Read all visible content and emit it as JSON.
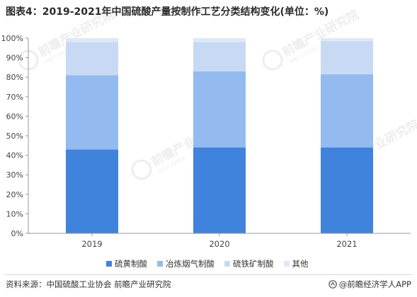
{
  "title": "图表4：2019-2021年中国硫酸产量按制作工艺分类结构变化(单位：%)",
  "legend_items": [
    {
      "label": "硫黄制酸",
      "color": "#3f83dd"
    },
    {
      "label": "冶炼烟气制酸",
      "color": "#93bbf0"
    },
    {
      "label": "硫铁矿制酸",
      "color": "#c8daf3"
    },
    {
      "label": "其他",
      "color": "#dde9f8"
    }
  ],
  "footer": {
    "source": "资料来源：中国硫酸工业协会 前瞻产业研究院",
    "brand": "@前瞻经济学人APP",
    "brand_logo_icon": "qianzhan-logo-icon"
  },
  "watermark": {
    "name": "前瞻产业研究院",
    "tagline": "前瞻产业研究院",
    "logo_icon": "qianzhan-watermark-icon"
  },
  "chart_data": {
    "type": "bar",
    "stacked": true,
    "categories": [
      "2019",
      "2020",
      "2021"
    ],
    "series": [
      {
        "name": "硫黄制酸",
        "color": "#3f83dd",
        "values": [
          43,
          44,
          44
        ]
      },
      {
        "name": "冶炼烟气制酸",
        "color": "#93bbf0",
        "values": [
          38,
          39,
          37.5
        ]
      },
      {
        "name": "硫铁矿制酸",
        "color": "#c8daf3",
        "values": [
          17,
          15,
          17
        ]
      },
      {
        "name": "其他",
        "color": "#dde9f8",
        "values": [
          2,
          2,
          1.5
        ]
      }
    ],
    "ylim": [
      0,
      100
    ],
    "yticks": [
      "0%",
      "10%",
      "20%",
      "30%",
      "40%",
      "50%",
      "60%",
      "70%",
      "80%",
      "90%",
      "100%"
    ],
    "grid": false,
    "legend_position": "bottom",
    "xlabel": "",
    "ylabel": ""
  }
}
